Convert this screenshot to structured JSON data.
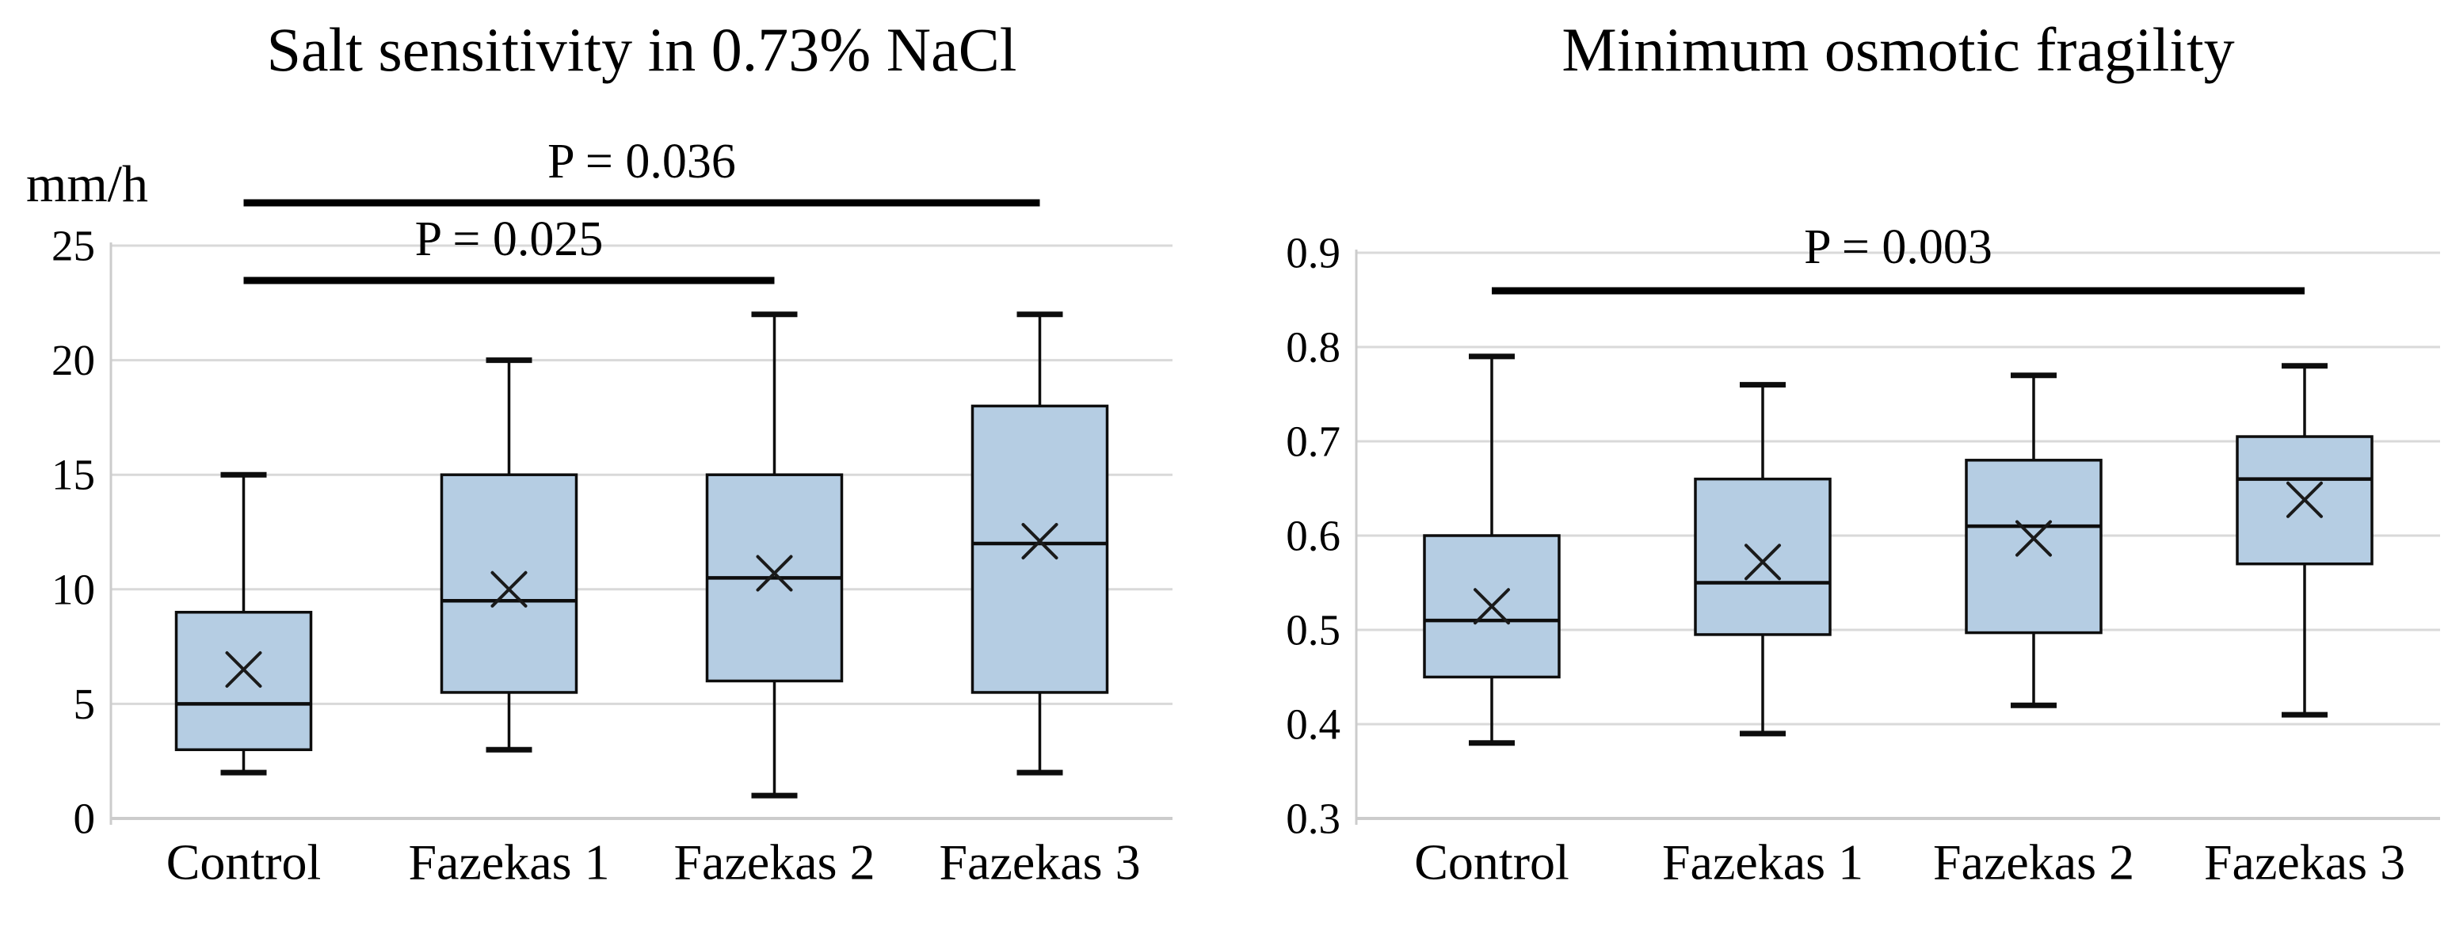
{
  "figure": {
    "background": "#ffffff",
    "description_visible_text_only": true
  },
  "colors": {
    "box_fill": "#b5cde3",
    "box_stroke": "#0d0d0d",
    "median_color": "#0d0d0d",
    "mean_marker_color": "#1a1a1a",
    "gridline": "#d9d9d9",
    "axis_line": "#cccccc",
    "significance_bar": "#000000",
    "text": "#000000"
  },
  "chart_data": [
    {
      "type": "boxplot",
      "title": "Salt sensitivity in 0.73% NaCl",
      "ylabel": "mm/h",
      "categories": [
        "Control",
        "Fazekas 1",
        "Fazekas 2",
        "Fazekas 3"
      ],
      "ylim": [
        0,
        25
      ],
      "yticks": [
        "0",
        "5",
        "10",
        "15",
        "20",
        "25"
      ],
      "grid": true,
      "legend": "none",
      "mean_marker": "x",
      "series": [
        {
          "category": "Control",
          "whisker_min": 2,
          "q1": 3,
          "median": 5,
          "q3": 9,
          "whisker_max": 15,
          "mean": 6.5
        },
        {
          "category": "Fazekas 1",
          "whisker_min": 3,
          "q1": 5.5,
          "median": 9.5,
          "q3": 15,
          "whisker_max": 20,
          "mean": 10.0
        },
        {
          "category": "Fazekas 2",
          "whisker_min": 1,
          "q1": 6,
          "median": 10.5,
          "q3": 15,
          "whisker_max": 22,
          "mean": 10.7
        },
        {
          "category": "Fazekas 3",
          "whisker_min": 2,
          "q1": 5.5,
          "median": 12,
          "q3": 18,
          "whisker_max": 22,
          "mean": 12.1
        }
      ],
      "significance_bars": [
        {
          "label": "P = 0.036",
          "from": "Control",
          "to": "Fazekas 3"
        },
        {
          "label": "P = 0.025",
          "from": "Control",
          "to": "Fazekas 2"
        }
      ]
    },
    {
      "type": "boxplot",
      "title": "Minimum osmotic fragility",
      "ylabel": "",
      "categories": [
        "Control",
        "Fazekas 1",
        "Fazekas 2",
        "Fazekas 3"
      ],
      "ylim": [
        0.3,
        0.9
      ],
      "yticks": [
        "0.3",
        "0.4",
        "0.5",
        "0.6",
        "0.7",
        "0.8",
        "0.9"
      ],
      "grid": true,
      "legend": "none",
      "mean_marker": "x",
      "series": [
        {
          "category": "Control",
          "whisker_min": 0.38,
          "q1": 0.45,
          "median": 0.51,
          "q3": 0.6,
          "whisker_max": 0.79,
          "mean": 0.525
        },
        {
          "category": "Fazekas 1",
          "whisker_min": 0.39,
          "q1": 0.495,
          "median": 0.55,
          "q3": 0.66,
          "whisker_max": 0.76,
          "mean": 0.572
        },
        {
          "category": "Fazekas 2",
          "whisker_min": 0.42,
          "q1": 0.497,
          "median": 0.61,
          "q3": 0.68,
          "whisker_max": 0.77,
          "mean": 0.597
        },
        {
          "category": "Fazekas 3",
          "whisker_min": 0.41,
          "q1": 0.57,
          "median": 0.66,
          "q3": 0.705,
          "whisker_max": 0.78,
          "mean": 0.638
        }
      ],
      "significance_bars": [
        {
          "label": "P = 0.003",
          "from": "Control",
          "to": "Fazekas 3"
        }
      ]
    }
  ]
}
